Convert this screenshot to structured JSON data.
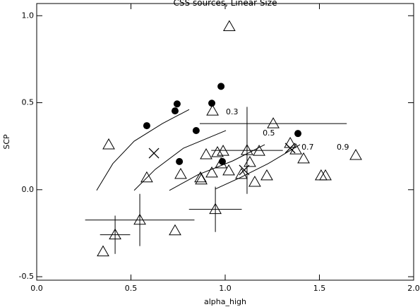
{
  "chart_data": {
    "type": "scatter",
    "title": "CSS sources, Linear Size",
    "x_label": "alpha_high",
    "y_label": "SCP",
    "xlim": [
      0,
      2
    ],
    "ylim": [
      -0.52,
      1.07
    ],
    "xticks": [
      {
        "value": 0,
        "label": "0.0"
      },
      0.5,
      {
        "value": 1,
        "label": "1.0"
      },
      1.5,
      {
        "value": 2,
        "label": "2.0"
      }
    ],
    "yticks": [
      -0.5,
      {
        "value": 0,
        "label": "0.0"
      },
      0.5,
      {
        "value": 1,
        "label": "1.0"
      }
    ],
    "color": "#000000",
    "series": [
      {
        "marker": "circle",
        "x": [
          0.584,
          0.745,
          0.734,
          0.978,
          0.929,
          0.846,
          0.757,
          0.985,
          1.386
        ],
        "values": [
          0.368,
          0.493,
          0.453,
          0.594,
          0.497,
          0.34,
          0.162,
          0.162,
          0.323
        ]
      },
      {
        "marker": "triangle",
        "x": [
          1.022,
          0.382,
          0.933,
          1.255,
          0.584,
          0.764,
          0.869,
          0.873,
          0.899,
          0.929,
          0.959,
          0.989,
          0.978,
          1.019,
          1.086,
          1.116,
          1.131,
          1.18,
          1.157,
          1.221,
          1.345,
          1.375,
          1.416,
          1.509,
          1.532,
          1.693,
          0.352,
          0.416,
          0.547,
          0.734,
          0.948
        ],
        "values": [
          0.938,
          0.259,
          0.453,
          0.38,
          0.069,
          0.089,
          0.069,
          0.057,
          0.202,
          0.097,
          0.214,
          0.222,
          0.15,
          0.109,
          0.089,
          0.226,
          0.158,
          0.222,
          0.044,
          0.081,
          0.267,
          0.23,
          0.178,
          0.081,
          0.081,
          0.198,
          -0.356,
          -0.259,
          -0.174,
          -0.235,
          -0.113
        ],
        "xerr": [
          null,
          null,
          null,
          0.39,
          null,
          null,
          null,
          null,
          null,
          null,
          null,
          null,
          null,
          null,
          null,
          0.19,
          null,
          null,
          null,
          null,
          null,
          null,
          null,
          null,
          null,
          null,
          null,
          0.08,
          0.29,
          null,
          0.14
        ],
        "yerr": [
          null,
          null,
          null,
          null,
          null,
          null,
          null,
          null,
          null,
          null,
          null,
          null,
          null,
          null,
          null,
          0.25,
          null,
          null,
          null,
          null,
          null,
          null,
          null,
          null,
          null,
          null,
          null,
          0.11,
          0.15,
          null,
          0.13
        ]
      },
      {
        "marker": "cross",
        "x": [
          0.622,
          1.101,
          1.345
        ],
        "values": [
          0.21,
          0.113,
          0.239
        ]
      },
      {
        "marker": "line",
        "name": "0.3",
        "x": [
          0.318,
          0.404,
          0.517,
          0.667,
          0.809
        ],
        "values": [
          -0.004,
          0.15,
          0.279,
          0.38,
          0.461
        ]
      },
      {
        "marker": "line",
        "name": "0.5",
        "x": [
          0.517,
          0.629,
          0.779,
          1.004
        ],
        "values": [
          -0.004,
          0.117,
          0.239,
          0.34
        ]
      },
      {
        "marker": "line",
        "name": "0.7",
        "x": [
          0.704,
          0.854,
          1.041,
          1.21
        ],
        "values": [
          -0.004,
          0.085,
          0.166,
          0.259
        ]
      },
      {
        "marker": "line",
        "name": "0.9",
        "x": [
          0.948,
          1.079,
          1.228,
          1.397
        ],
        "values": [
          0.004,
          0.069,
          0.15,
          0.259
        ]
      }
    ]
  }
}
